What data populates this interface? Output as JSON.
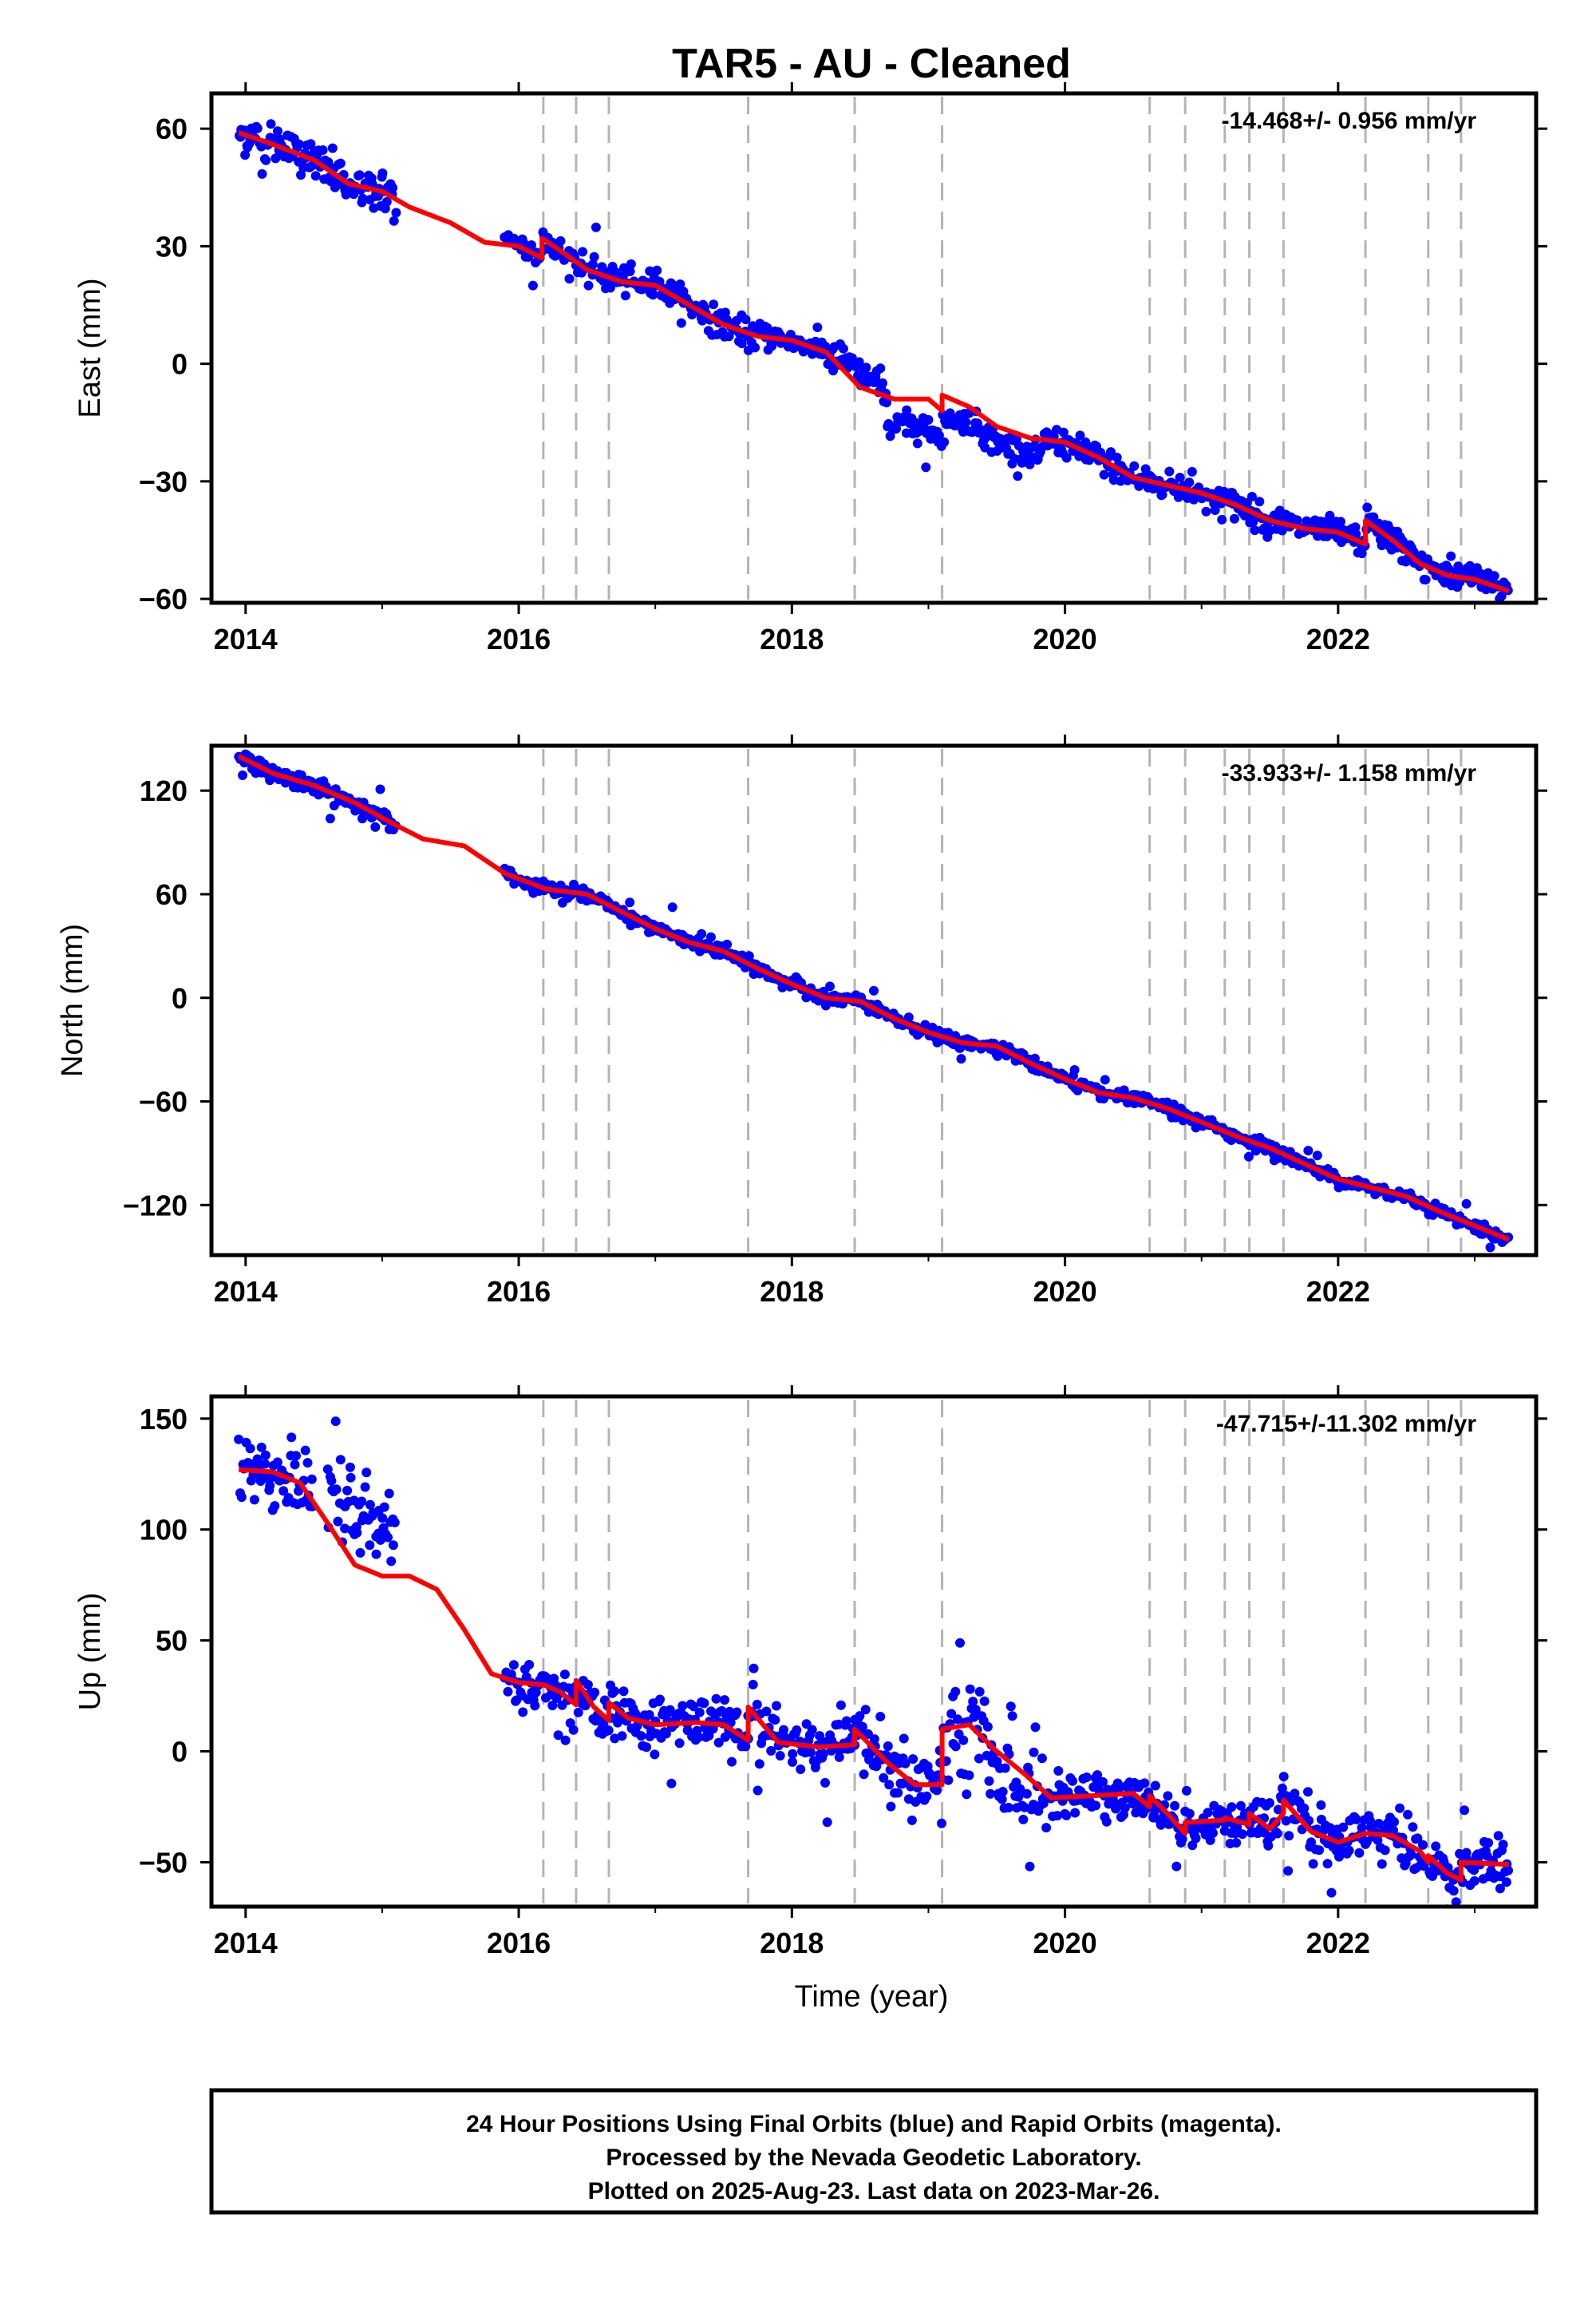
{
  "colors": {
    "points": "#0000ff",
    "model": "#ff0000",
    "vlines": "#b4b4b4",
    "frame": "#000000"
  },
  "chart_data": [
    {
      "type": "scatter",
      "title": "TAR5  - AU - Cleaned",
      "ylabel": "East (mm)",
      "xlabel": "",
      "rate_label": "-14.468+/- 0.956 mm/yr",
      "xlim": [
        2013.75,
        2023.45
      ],
      "ylim": [
        -61,
        69
      ],
      "x_ticks": [
        2014,
        2016,
        2018,
        2020,
        2022
      ],
      "x_tick_labels": [
        "2014",
        "2016",
        "2018",
        "2020",
        "2022"
      ],
      "y_ticks": [
        -60,
        -30,
        0,
        30,
        60
      ],
      "y_tick_labels": [
        "−60",
        "−30",
        "0",
        "30",
        "60"
      ],
      "vertical_lines": [
        2016.18,
        2016.42,
        2016.66,
        2017.68,
        2018.46,
        2019.1,
        2020.62,
        2020.88,
        2021.17,
        2021.35,
        2021.6,
        2022.2,
        2022.66,
        2022.9
      ],
      "model_line": {
        "name": "",
        "x": [
          2013.95,
          2014.2,
          2014.5,
          2014.75,
          2015.0,
          2015.2,
          2015.5,
          2015.75,
          2016.0,
          2016.17,
          2016.17,
          2016.3,
          2016.5,
          2016.75,
          2017.0,
          2017.25,
          2017.5,
          2017.75,
          2018.0,
          2018.25,
          2018.5,
          2018.75,
          2019.0,
          2019.1,
          2019.1,
          2019.3,
          2019.5,
          2019.75,
          2020.0,
          2020.25,
          2020.5,
          2020.75,
          2021.0,
          2021.25,
          2021.5,
          2021.75,
          2022.0,
          2022.2,
          2022.2,
          2022.4,
          2022.6,
          2022.8,
          2023.0,
          2023.25
        ],
        "y": [
          59,
          56,
          52,
          46,
          44,
          40,
          36,
          31,
          30,
          27,
          32,
          29,
          24,
          21,
          20,
          15,
          10,
          7,
          6,
          3,
          -6,
          -9,
          -9,
          -12,
          -8,
          -11,
          -16,
          -19,
          -20,
          -24,
          -29,
          -31,
          -33,
          -36,
          -40,
          -42,
          -43,
          -46,
          -40,
          -45,
          -51,
          -54,
          -55,
          -58
        ]
      },
      "points": {
        "name": "",
        "segments": [
          {
            "x0": 2013.95,
            "x1": 2015.1,
            "noise": 2.5
          },
          {
            "x0": 2015.9,
            "x1": 2023.25,
            "noise": 1.7
          }
        ],
        "anomalies": [
          {
            "x0": 2018.35,
            "x1": 2018.65,
            "y_offset": 3
          },
          {
            "x0": 2018.7,
            "x1": 2019.15,
            "y_offset": -7
          },
          {
            "x0": 2019.15,
            "x1": 2019.85,
            "y_offset": -4
          }
        ]
      }
    },
    {
      "type": "scatter",
      "title": "",
      "ylabel": "North (mm)",
      "xlabel": "",
      "rate_label": "-33.933+/- 1.158 mm/yr",
      "xlim": [
        2013.75,
        2023.45
      ],
      "ylim": [
        -149,
        146
      ],
      "x_ticks": [
        2014,
        2016,
        2018,
        2020,
        2022
      ],
      "x_tick_labels": [
        "2014",
        "2016",
        "2018",
        "2020",
        "2022"
      ],
      "y_ticks": [
        -120,
        -60,
        0,
        60,
        120
      ],
      "y_tick_labels": [
        "−120",
        "−60",
        "0",
        "60",
        "120"
      ],
      "vertical_lines": [
        2016.18,
        2016.42,
        2016.66,
        2017.68,
        2018.46,
        2019.1,
        2020.62,
        2020.88,
        2021.17,
        2021.35,
        2021.6,
        2022.2,
        2022.66,
        2022.9
      ],
      "model_line": {
        "name": "",
        "x": [
          2013.95,
          2014.2,
          2014.5,
          2014.8,
          2015.1,
          2015.3,
          2015.6,
          2015.9,
          2016.2,
          2016.5,
          2016.75,
          2017.0,
          2017.25,
          2017.5,
          2017.75,
          2018.0,
          2018.25,
          2018.5,
          2018.75,
          2019.0,
          2019.25,
          2019.5,
          2019.75,
          2020.0,
          2020.25,
          2020.5,
          2020.75,
          2021.0,
          2021.25,
          2021.5,
          2021.75,
          2022.0,
          2022.25,
          2022.5,
          2022.75,
          2023.0,
          2023.25
        ],
        "y": [
          140,
          130,
          123,
          113,
          100,
          92,
          88,
          72,
          63,
          60,
          50,
          40,
          32,
          27,
          17,
          8,
          0,
          -2,
          -12,
          -20,
          -26,
          -28,
          -38,
          -47,
          -55,
          -58,
          -64,
          -72,
          -80,
          -87,
          -96,
          -105,
          -110,
          -115,
          -124,
          -132,
          -140
        ]
      },
      "points": {
        "name": "",
        "segments": [
          {
            "x0": 2013.95,
            "x1": 2015.1,
            "noise": 2.2
          },
          {
            "x0": 2015.9,
            "x1": 2023.25,
            "noise": 1.8
          }
        ],
        "anomalies": []
      }
    },
    {
      "type": "scatter",
      "title": "",
      "ylabel": "Up (mm)",
      "xlabel": "Time (year)",
      "rate_label": "-47.715+/-11.302 mm/yr",
      "xlim": [
        2013.75,
        2023.45
      ],
      "ylim": [
        -70,
        160
      ],
      "x_ticks": [
        2014,
        2016,
        2018,
        2020,
        2022
      ],
      "x_tick_labels": [
        "2014",
        "2016",
        "2018",
        "2020",
        "2022"
      ],
      "y_ticks": [
        -50,
        0,
        50,
        100,
        150
      ],
      "y_tick_labels": [
        "−50",
        "0",
        "50",
        "100",
        "150"
      ],
      "vertical_lines": [
        2016.18,
        2016.42,
        2016.66,
        2017.68,
        2018.46,
        2019.1,
        2020.62,
        2020.88,
        2021.17,
        2021.35,
        2021.6,
        2022.2,
        2022.66,
        2022.9
      ],
      "model_line": {
        "name": "",
        "x": [
          2013.95,
          2014.2,
          2014.4,
          2014.6,
          2014.8,
          2015.0,
          2015.2,
          2015.4,
          2015.6,
          2015.8,
          2016.0,
          2016.18,
          2016.3,
          2016.42,
          2016.42,
          2016.55,
          2016.66,
          2016.66,
          2016.8,
          2017.0,
          2017.3,
          2017.5,
          2017.68,
          2017.68,
          2017.9,
          2018.2,
          2018.46,
          2018.46,
          2018.7,
          2018.9,
          2019.1,
          2019.1,
          2019.3,
          2019.5,
          2019.7,
          2019.9,
          2020.2,
          2020.5,
          2020.62,
          2020.62,
          2020.75,
          2020.88,
          2020.88,
          2021.17,
          2021.17,
          2021.35,
          2021.35,
          2021.5,
          2021.6,
          2021.6,
          2021.8,
          2022.0,
          2022.2,
          2022.4,
          2022.6,
          2022.66,
          2022.66,
          2022.8,
          2022.9,
          2022.9,
          2023.25
        ],
        "y": [
          127,
          126,
          121,
          103,
          84,
          79,
          79,
          73,
          55,
          35,
          31,
          30,
          27,
          21,
          32,
          20,
          14,
          22,
          15,
          12,
          13,
          12,
          5,
          20,
          4,
          2,
          3,
          10,
          -5,
          -15,
          -15,
          10,
          12,
          0,
          -10,
          -21,
          -20,
          -19,
          -25,
          -20,
          -28,
          -37,
          -32,
          -31,
          -30,
          -33,
          -28,
          -35,
          -28,
          -22,
          -36,
          -41,
          -37,
          -38,
          -45,
          -50,
          -47,
          -55,
          -58,
          -50,
          -51
        ]
      },
      "points": {
        "name": "",
        "segments": [
          {
            "x0": 2013.95,
            "x1": 2014.5,
            "noise": 8
          },
          {
            "x0": 2014.6,
            "x1": 2015.1,
            "noise": 10
          },
          {
            "x0": 2015.9,
            "x1": 2018.5,
            "noise": 5.5
          },
          {
            "x0": 2018.5,
            "x1": 2019.1,
            "noise": 8
          },
          {
            "x0": 2019.1,
            "x1": 2019.8,
            "noise": 14
          },
          {
            "x0": 2019.8,
            "x1": 2023.25,
            "noise": 5.5
          }
        ],
        "anomalies": [
          {
            "x0": 2014.6,
            "x1": 2015.1,
            "y_offset": 22
          },
          {
            "x0": 2019.1,
            "x1": 2019.8,
            "y_offset": -8
          }
        ]
      }
    }
  ],
  "footer": {
    "line1": "24 Hour Positions Using Final Orbits (blue) and Rapid Orbits (magenta).",
    "line2": "Processed by the Nevada Geodetic Laboratory.",
    "line3": "Plotted on 2025-Aug-23. Last data on 2023-Mar-26."
  }
}
